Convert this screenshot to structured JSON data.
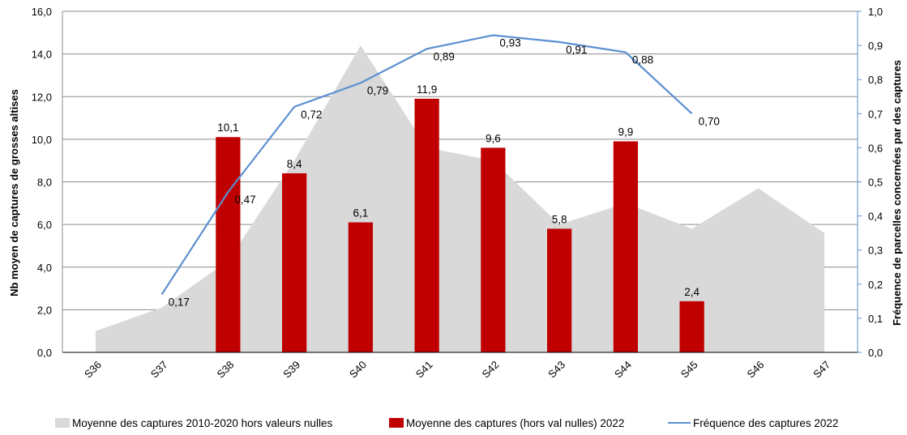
{
  "chart_data": {
    "type": "bar",
    "title": "",
    "categories": [
      "S36",
      "S37",
      "S38",
      "S39",
      "S40",
      "S41",
      "S42",
      "S43",
      "S44",
      "S45",
      "S46",
      "S47"
    ],
    "y_left": {
      "label": "Nb moyen de captures de grosses altises",
      "ylim": [
        0,
        16
      ],
      "ticks": [
        "0,0",
        "2,0",
        "4,0",
        "6,0",
        "8,0",
        "10,0",
        "12,0",
        "14,0",
        "16,0"
      ],
      "tick_values": [
        0,
        2,
        4,
        6,
        8,
        10,
        12,
        14,
        16
      ]
    },
    "y_right": {
      "label": "Fréquence de parcelles concernées par des captures",
      "ylim": [
        0,
        1
      ],
      "ticks": [
        "0,0",
        "0,1",
        "0,2",
        "0,3",
        "0,4",
        "0,5",
        "0,6",
        "0,7",
        "0,8",
        "0,9",
        "1,0"
      ],
      "tick_values": [
        0,
        0.1,
        0.2,
        0.3,
        0.4,
        0.5,
        0.6,
        0.7,
        0.8,
        0.9,
        1.0
      ]
    },
    "grid": true,
    "legend_position": "bottom",
    "series": [
      {
        "name": "Moyenne des captures 2010-2020 hors valeurs nulles",
        "type": "area",
        "axis": "left",
        "color": "#d9d9d9",
        "values": [
          1.0,
          2.1,
          4.3,
          9.0,
          14.4,
          9.6,
          9.0,
          6.0,
          7.0,
          5.8,
          7.7,
          5.6
        ]
      },
      {
        "name": "Moyenne des captures (hors val nulles) 2022",
        "type": "bar",
        "axis": "left",
        "color": "#c00000",
        "values": [
          null,
          null,
          10.1,
          8.4,
          6.1,
          11.9,
          9.6,
          5.8,
          9.9,
          2.4,
          null,
          null
        ],
        "labels": [
          null,
          null,
          "10,1",
          "8,4",
          "6,1",
          "11,9",
          "9,6",
          "5,8",
          "9,9",
          "2,4",
          null,
          null
        ]
      },
      {
        "name": "Fréquence des captures 2022",
        "type": "line",
        "axis": "right",
        "color": "#5b8fd0",
        "values": [
          null,
          0.17,
          0.47,
          0.72,
          0.79,
          0.89,
          0.93,
          0.91,
          0.88,
          0.7,
          null,
          null
        ],
        "labels": [
          null,
          "0,17",
          "0,47",
          "0,72",
          "0,79",
          "0,89",
          "0,93",
          "0,91",
          "0,88",
          "0,70",
          null,
          null
        ]
      }
    ]
  }
}
